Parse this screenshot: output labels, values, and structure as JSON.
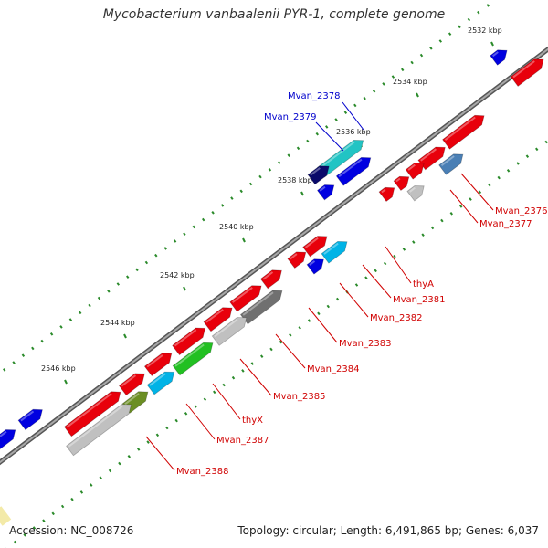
{
  "title": "Mycobacterium vanbaalenii PYR-1, complete genome",
  "footer": {
    "accession": "Accession: NC_008726",
    "stats": "Topology: circular; Length: 6,491,865 bp; Genes: 6,037"
  },
  "colors": {
    "forward_gene": "#e8000b",
    "blue_gene": "#0000e0",
    "cyan_gene": "#00b3e6",
    "dark_navy_gene": "#0a0a6a",
    "teal_gene": "#22c4c4",
    "steelblue_gene": "#4a7fb5",
    "green_gene": "#22c022",
    "olive_gene": "#6b8e23",
    "gray_gene": "#c0c0c0",
    "darkgray_gene": "#707070",
    "backbone": "#777777",
    "tick": "#2a8a2a",
    "label_red": "#d00000",
    "label_blue": "#0000cc"
  },
  "ticks": [
    {
      "label": "2532 kbp"
    },
    {
      "label": "2534 kbp"
    },
    {
      "label": "2536 kbp"
    },
    {
      "label": "2538 kbp"
    },
    {
      "label": "2540 kbp"
    },
    {
      "label": "2542 kbp"
    },
    {
      "label": "2544 kbp"
    },
    {
      "label": "2546 kbp"
    }
  ],
  "gene_labels": [
    {
      "text": "Mvan_2378",
      "color": "blue"
    },
    {
      "text": "Mvan_2379",
      "color": "blue"
    },
    {
      "text": "Mvan_2376",
      "color": "red"
    },
    {
      "text": "Mvan_2377",
      "color": "red"
    },
    {
      "text": "thyA",
      "color": "red"
    },
    {
      "text": "Mvan_2381",
      "color": "red"
    },
    {
      "text": "Mvan_2382",
      "color": "red"
    },
    {
      "text": "Mvan_2383",
      "color": "red"
    },
    {
      "text": "Mvan_2384",
      "color": "red"
    },
    {
      "text": "Mvan_2385",
      "color": "red"
    },
    {
      "text": "thyX",
      "color": "red"
    },
    {
      "text": "Mvan_2387",
      "color": "red"
    },
    {
      "text": "Mvan_2388",
      "color": "red"
    }
  ]
}
